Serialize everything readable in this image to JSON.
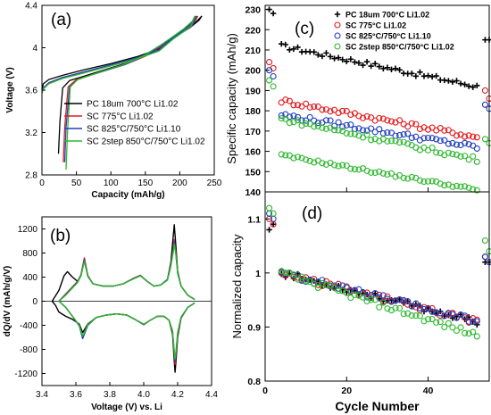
{
  "chart_data": [
    {
      "panel": "a",
      "type": "line",
      "panel_label": "(a)",
      "xlabel": "Capacity (mAh/g)",
      "ylabel": "Voltage (V)",
      "xlim": [
        0,
        250
      ],
      "ylim": [
        2.8,
        4.4
      ],
      "x_ticks": [
        "0",
        "50",
        "100",
        "150",
        "200",
        "250"
      ],
      "y_ticks": [
        "2.8",
        "3.2",
        "3.6",
        "4",
        "4.4"
      ],
      "legend_position": "bottom-right",
      "series": [
        {
          "name": "PC 18um 700°C Li1.02",
          "color": "#000000",
          "charge": {
            "x": [
              0,
              2,
              10,
              30,
              60,
              100,
              140,
              170,
              190,
              205,
              220,
              232
            ],
            "y": [
              3.6,
              3.66,
              3.7,
              3.74,
              3.79,
              3.85,
              3.92,
              3.99,
              4.1,
              4.17,
              4.22,
              4.3
            ]
          },
          "discharge": {
            "x": [
              232,
              228,
              215,
              200,
              180,
              150,
              120,
              90,
              60,
              40,
              30,
              26,
              24
            ],
            "y": [
              4.3,
              4.26,
              4.19,
              4.13,
              4.04,
              3.93,
              3.85,
              3.79,
              3.73,
              3.69,
              3.62,
              3.3,
              3.0
            ]
          }
        },
        {
          "name": "SC 775°C Li1.02",
          "color": "#e41a1c",
          "charge": {
            "x": [
              0,
              2,
              10,
              30,
              60,
              100,
              140,
              170,
              190,
              205,
              218,
              226
            ],
            "y": [
              3.58,
              3.62,
              3.67,
              3.72,
              3.77,
              3.83,
              3.9,
              3.98,
              4.09,
              4.16,
              4.21,
              4.3
            ]
          },
          "discharge": {
            "x": [
              226,
              222,
              210,
              195,
              175,
              150,
              120,
              95,
              70,
              50,
              38,
              33,
              31
            ],
            "y": [
              4.3,
              4.25,
              4.18,
              4.11,
              4.02,
              3.92,
              3.84,
              3.79,
              3.74,
              3.7,
              3.63,
              3.25,
              2.92
            ]
          }
        },
        {
          "name": "SC 825°C/750°C Li1.10",
          "color": "#1f3fbf",
          "charge": {
            "x": [
              0,
              2,
              10,
              30,
              60,
              100,
              140,
              170,
              190,
              205,
              218,
              224
            ],
            "y": [
              3.58,
              3.62,
              3.67,
              3.72,
              3.77,
              3.84,
              3.91,
              3.98,
              4.09,
              4.16,
              4.21,
              4.3
            ]
          },
          "discharge": {
            "x": [
              224,
              220,
              208,
              193,
              173,
              148,
              120,
              95,
              70,
              52,
              40,
              35,
              33
            ],
            "y": [
              4.3,
              4.25,
              4.18,
              4.11,
              4.02,
              3.92,
              3.84,
              3.79,
              3.74,
              3.7,
              3.63,
              3.25,
              2.92
            ]
          }
        },
        {
          "name": "SC 2step 850°C/750°C Li1.02",
          "color": "#2db82d",
          "charge": {
            "x": [
              0,
              2,
              10,
              30,
              60,
              100,
              140,
              170,
              190,
              205,
              216,
              222
            ],
            "y": [
              3.57,
              3.61,
              3.66,
              3.71,
              3.76,
              3.83,
              3.9,
              3.97,
              4.08,
              4.15,
              4.2,
              4.3
            ]
          },
          "discharge": {
            "x": [
              222,
              218,
              206,
              191,
              171,
              146,
              118,
              93,
              70,
              52,
              41,
              37,
              35
            ],
            "y": [
              4.3,
              4.25,
              4.18,
              4.11,
              4.02,
              3.92,
              3.84,
              3.79,
              3.74,
              3.7,
              3.63,
              3.2,
              2.85
            ]
          }
        }
      ]
    },
    {
      "panel": "b",
      "type": "line",
      "panel_label": "(b)",
      "xlabel": "Voltage (V) vs. Li",
      "ylabel": "dQ/dV (mAh/g/V)",
      "xlim": [
        3.4,
        4.4
      ],
      "ylim": [
        -1400,
        1400
      ],
      "x_ticks": [
        "3.4",
        "3.6",
        "3.8",
        "4.0",
        "4.2",
        "4.4"
      ],
      "y_ticks": [
        "-1200",
        "-800",
        "-400",
        "0",
        "400",
        "800",
        "1200"
      ],
      "series": [
        {
          "name": "PC 18um 700°C Li1.02",
          "color": "#000000",
          "charge": {
            "x": [
              3.46,
              3.5,
              3.53,
              3.55,
              3.58,
              3.61,
              3.63,
              3.65,
              3.67,
              3.7,
              3.76,
              3.82,
              3.88,
              3.94,
              3.98,
              4.02,
              4.06,
              4.1,
              4.14,
              4.16,
              4.175,
              4.18,
              4.19,
              4.2,
              4.22,
              4.26,
              4.3
            ],
            "y": [
              0,
              180,
              420,
              490,
              400,
              330,
              420,
              700,
              420,
              290,
              250,
              250,
              290,
              380,
              430,
              330,
              250,
              270,
              360,
              650,
              1100,
              1270,
              900,
              500,
              250,
              100,
              30
            ]
          },
          "discharge": {
            "x": [
              4.3,
              4.26,
              4.22,
              4.2,
              4.19,
              4.185,
              4.18,
              4.17,
              4.15,
              4.12,
              4.08,
              4.03,
              4.0,
              3.96,
              3.9,
              3.84,
              3.78,
              3.72,
              3.67,
              3.64,
              3.62,
              3.58,
              3.54,
              3.5,
              3.48,
              3.46
            ],
            "y": [
              -30,
              -100,
              -280,
              -600,
              -1000,
              -1180,
              -1000,
              -550,
              -320,
              -250,
              -250,
              -330,
              -390,
              -320,
              -230,
              -210,
              -230,
              -270,
              -380,
              -520,
              -380,
              -300,
              -250,
              -180,
              -70,
              0
            ]
          }
        },
        {
          "name": "SC 775°C Li1.02",
          "color": "#e41a1c",
          "charge": {
            "x": [
              3.5,
              3.54,
              3.58,
              3.61,
              3.63,
              3.65,
              3.67,
              3.7,
              3.76,
              3.82,
              3.88,
              3.94,
              3.98,
              4.02,
              4.06,
              4.1,
              4.14,
              4.16,
              4.175,
              4.18,
              4.19,
              4.2,
              4.22,
              4.26,
              4.3
            ],
            "y": [
              0,
              120,
              240,
              330,
              440,
              720,
              430,
              290,
              250,
              250,
              290,
              380,
              430,
              330,
              250,
              270,
              360,
              620,
              900,
              1020,
              800,
              480,
              250,
              100,
              30
            ]
          },
          "discharge": {
            "x": [
              4.3,
              4.26,
              4.22,
              4.2,
              4.19,
              4.185,
              4.18,
              4.17,
              4.15,
              4.12,
              4.08,
              4.03,
              4.0,
              3.96,
              3.9,
              3.84,
              3.78,
              3.72,
              3.67,
              3.64,
              3.62,
              3.58,
              3.54,
              3.5
            ],
            "y": [
              -30,
              -100,
              -280,
              -560,
              -900,
              -1050,
              -900,
              -520,
              -320,
              -250,
              -250,
              -330,
              -390,
              -320,
              -230,
              -210,
              -230,
              -270,
              -400,
              -600,
              -400,
              -250,
              -100,
              0
            ]
          }
        },
        {
          "name": "SC 825°C/750°C Li1.10",
          "color": "#1f3fbf",
          "charge": {
            "x": [
              3.5,
              3.54,
              3.58,
              3.61,
              3.63,
              3.65,
              3.67,
              3.7,
              3.76,
              3.82,
              3.88,
              3.94,
              3.98,
              4.02,
              4.06,
              4.1,
              4.14,
              4.16,
              4.175,
              4.18,
              4.19,
              4.2,
              4.22,
              4.26,
              4.3
            ],
            "y": [
              0,
              110,
              230,
              320,
              430,
              690,
              420,
              290,
              250,
              250,
              290,
              375,
              425,
              330,
              250,
              270,
              360,
              600,
              870,
              990,
              780,
              470,
              250,
              100,
              30
            ]
          },
          "discharge": {
            "x": [
              4.3,
              4.26,
              4.22,
              4.2,
              4.19,
              4.185,
              4.18,
              4.17,
              4.15,
              4.12,
              4.08,
              4.03,
              4.0,
              3.96,
              3.9,
              3.84,
              3.78,
              3.72,
              3.67,
              3.64,
              3.62,
              3.58,
              3.54,
              3.5
            ],
            "y": [
              -30,
              -100,
              -270,
              -540,
              -860,
              -1000,
              -860,
              -500,
              -320,
              -250,
              -250,
              -330,
              -385,
              -320,
              -230,
              -210,
              -230,
              -270,
              -400,
              -620,
              -410,
              -250,
              -100,
              0
            ]
          }
        },
        {
          "name": "SC 2step 850°C/750°C Li1.02",
          "color": "#2db82d",
          "charge": {
            "x": [
              3.5,
              3.54,
              3.58,
              3.61,
              3.63,
              3.65,
              3.67,
              3.7,
              3.76,
              3.82,
              3.88,
              3.94,
              3.98,
              4.02,
              4.06,
              4.1,
              4.14,
              4.16,
              4.175,
              4.18,
              4.19,
              4.2,
              4.22,
              4.26,
              4.3
            ],
            "y": [
              0,
              100,
              220,
              310,
              420,
              660,
              410,
              290,
              250,
              250,
              290,
              370,
              420,
              330,
              250,
              270,
              350,
              580,
              830,
              950,
              760,
              460,
              250,
              100,
              30
            ]
          },
          "discharge": {
            "x": [
              4.3,
              4.26,
              4.22,
              4.2,
              4.19,
              4.185,
              4.18,
              4.17,
              4.15,
              4.12,
              4.08,
              4.03,
              4.0,
              3.96,
              3.9,
              3.84,
              3.78,
              3.72,
              3.67,
              3.64,
              3.62,
              3.58,
              3.54,
              3.5
            ],
            "y": [
              -30,
              -100,
              -260,
              -520,
              -830,
              -960,
              -830,
              -490,
              -320,
              -250,
              -250,
              -330,
              -380,
              -320,
              -230,
              -210,
              -230,
              -270,
              -390,
              -580,
              -400,
              -250,
              -100,
              0
            ]
          }
        }
      ]
    },
    {
      "panel": "c",
      "type": "scatter",
      "panel_label": "(c)",
      "xlabel": "Cycle Number",
      "ylabel": "Specific capacity (mAh/g)",
      "xlim": [
        0,
        55
      ],
      "ylim": [
        140,
        232
      ],
      "x_ticks": [
        "0",
        "20",
        "40"
      ],
      "y_ticks": [
        "140",
        "150",
        "160",
        "170",
        "180",
        "190",
        "200",
        "210",
        "220",
        "230"
      ],
      "legend_position": "top-right",
      "series": [
        {
          "name": "PC 18um 700°C Li1.02",
          "color": "#000000",
          "marker": "plus",
          "start": [
            230,
            228
          ],
          "fade_start": 212,
          "fade_end": 192,
          "recover": [
            215,
            215
          ]
        },
        {
          "name": "SC 775°C Li1.02",
          "color": "#e41a1c",
          "marker": "circle",
          "start": [
            204,
            201
          ],
          "fade_start": 185,
          "fade_end": 167,
          "recover": [
            190,
            186
          ]
        },
        {
          "name": "SC 825°C/750°C Li1.10",
          "color": "#1f3fbf",
          "marker": "circle",
          "start": [
            200,
            197
          ],
          "fade_start": 178,
          "fade_end": 162,
          "recover": [
            183,
            181
          ]
        },
        {
          "name": "SC 2step 850°C/750°C Li1.02",
          "color": "#2db82d",
          "marker": "circle",
          "start": [
            195,
            192
          ],
          "fade_start": 176,
          "fade_end": 156,
          "recover": [
            166,
            164
          ]
        }
      ],
      "extra_series_notes": "SC 2step lower branch fades 158 -> 141"
    },
    {
      "panel": "d",
      "type": "scatter",
      "panel_label": "(d)",
      "xlabel": "Cycle Number",
      "ylabel": "Normalized capacity",
      "xlim": [
        0,
        55
      ],
      "ylim": [
        0.8,
        1.15
      ],
      "x_ticks": [
        "0",
        "20",
        "40"
      ],
      "y_ticks": [
        "0.8",
        "0.9",
        "1",
        "1.1"
      ],
      "series": [
        {
          "name": "PC 18um 700°C Li1.02",
          "color": "#000000",
          "marker": "plus",
          "start": [
            1.08,
            1.09
          ],
          "fade_end": 0.91,
          "recover": [
            1.02,
            1.02
          ]
        },
        {
          "name": "SC 775°C Li1.02",
          "color": "#e41a1c",
          "marker": "circle",
          "start": [
            1.1,
            1.09
          ],
          "fade_end": 0.91,
          "recover": [
            1.03,
            1.02
          ]
        },
        {
          "name": "SC 825°C/750°C Li1.10",
          "color": "#1f3fbf",
          "marker": "circle",
          "start": [
            1.11,
            1.1
          ],
          "fade_end": 0.91,
          "recover": [
            1.03,
            1.02
          ]
        },
        {
          "name": "SC 2step 850°C/750°C Li1.02",
          "color": "#2db82d",
          "marker": "circle",
          "start": [
            1.12,
            1.11
          ],
          "fade_end": 0.885,
          "recover": [
            1.06,
            1.04
          ]
        }
      ]
    }
  ]
}
